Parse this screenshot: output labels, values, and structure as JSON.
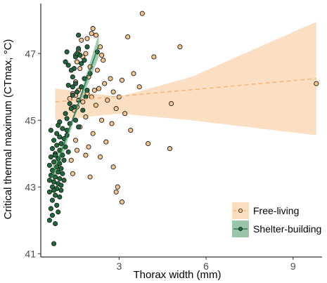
{
  "chart_data": {
    "type": "scatter",
    "xlabel": "Thorax width (mm)",
    "ylabel": "Critical thermal maximum (CTmax, °C)",
    "xlim": [
      0.3,
      10.0
    ],
    "ylim": [
      40.9,
      48.5
    ],
    "x_ticks": [
      3,
      6,
      9
    ],
    "y_ticks": [
      41,
      43,
      45,
      47
    ],
    "grid": false,
    "legend_position": "bottom-right",
    "series": [
      {
        "name": "Free-living",
        "color": "#f6c48e",
        "line_color": "#f7b57a",
        "band_color": "#fbd9b8",
        "line_style": "dashed",
        "fit": {
          "x": [
            0.8,
            9.8
          ],
          "y": [
            45.55,
            46.25
          ]
        },
        "band": {
          "x": [
            0.8,
            3.0,
            5.5,
            9.8
          ],
          "lower": [
            45.0,
            45.2,
            45.0,
            44.55
          ],
          "upper": [
            45.95,
            45.7,
            46.3,
            47.95
          ]
        },
        "points": [
          [
            3.8,
            48.2
          ],
          [
            2.1,
            47.75
          ],
          [
            2.05,
            47.6
          ],
          [
            2.2,
            47.55
          ],
          [
            1.9,
            47.45
          ],
          [
            3.3,
            47.5
          ],
          [
            1.7,
            47.4
          ],
          [
            2.35,
            47.2
          ],
          [
            5.1,
            47.2
          ],
          [
            1.6,
            47.1
          ],
          [
            1.85,
            47.0
          ],
          [
            2.4,
            46.95
          ],
          [
            1.5,
            46.95
          ],
          [
            1.75,
            46.9
          ],
          [
            4.2,
            46.9
          ],
          [
            2.45,
            46.8
          ],
          [
            1.8,
            46.8
          ],
          [
            1.55,
            46.75
          ],
          [
            2.0,
            46.6
          ],
          [
            1.65,
            46.55
          ],
          [
            2.25,
            46.5
          ],
          [
            3.5,
            46.4
          ],
          [
            1.95,
            46.3
          ],
          [
            2.7,
            46.25
          ],
          [
            3.1,
            46.2
          ],
          [
            1.5,
            46.15
          ],
          [
            2.5,
            46.1
          ],
          [
            1.7,
            46.0
          ],
          [
            3.7,
            46.0
          ],
          [
            2.3,
            45.95
          ],
          [
            1.6,
            45.9
          ],
          [
            2.15,
            45.9
          ],
          [
            2.8,
            45.85
          ],
          [
            1.4,
            45.8
          ],
          [
            1.9,
            45.8
          ],
          [
            3.0,
            45.7
          ],
          [
            2.05,
            45.7
          ],
          [
            1.3,
            45.65
          ],
          [
            2.6,
            45.6
          ],
          [
            1.75,
            45.55
          ],
          [
            4.8,
            45.5
          ],
          [
            2.2,
            45.45
          ],
          [
            1.55,
            45.4
          ],
          [
            2.9,
            45.35
          ],
          [
            1.45,
            45.3
          ],
          [
            3.2,
            45.2
          ],
          [
            1.85,
            45.1
          ],
          [
            2.4,
            45.0
          ],
          [
            2.75,
            44.9
          ],
          [
            1.65,
            44.8
          ],
          [
            3.4,
            44.7
          ],
          [
            2.1,
            44.6
          ],
          [
            1.5,
            44.4
          ],
          [
            2.55,
            44.35
          ],
          [
            4.0,
            44.3
          ],
          [
            1.95,
            44.2
          ],
          [
            4.75,
            44.15
          ],
          [
            1.55,
            44.1
          ],
          [
            2.35,
            43.9
          ],
          [
            1.85,
            43.95
          ],
          [
            2.8,
            43.6
          ],
          [
            1.4,
            43.4
          ],
          [
            2.0,
            43.3
          ],
          [
            2.95,
            43.0
          ],
          [
            2.9,
            42.85
          ],
          [
            3.1,
            42.55
          ],
          [
            9.8,
            46.1
          ],
          [
            1.35,
            43.8
          ],
          [
            1.5,
            45.75
          ]
        ]
      },
      {
        "name": "Shelter-building",
        "color": "#1f6a3c",
        "line_color": "#2e7d4f",
        "band_color": "#8fbf9f",
        "line_style": "solid",
        "fit": {
          "x": [
            0.7,
            2.3
          ],
          "y": [
            43.3,
            47.25
          ]
        },
        "band": {
          "x": [
            0.7,
            1.5,
            2.3
          ],
          "lower": [
            42.95,
            45.15,
            46.9
          ],
          "upper": [
            43.65,
            45.3,
            47.6
          ]
        },
        "points": [
          [
            1.6,
            47.55
          ],
          [
            1.9,
            47.2
          ],
          [
            1.6,
            47.15
          ],
          [
            1.2,
            47.05
          ],
          [
            2.25,
            47.05
          ],
          [
            1.65,
            46.95
          ],
          [
            1.5,
            46.9
          ],
          [
            1.8,
            46.8
          ],
          [
            1.15,
            46.75
          ],
          [
            1.25,
            46.65
          ],
          [
            1.45,
            46.55
          ],
          [
            1.35,
            46.5
          ],
          [
            2.0,
            46.4
          ],
          [
            1.4,
            46.3
          ],
          [
            1.8,
            46.25
          ],
          [
            1.5,
            46.1
          ],
          [
            1.25,
            46.05
          ],
          [
            1.7,
            46.0
          ],
          [
            1.9,
            45.9
          ],
          [
            1.55,
            45.85
          ],
          [
            1.4,
            45.75
          ],
          [
            1.85,
            45.7
          ],
          [
            1.6,
            45.6
          ],
          [
            1.3,
            45.5
          ],
          [
            1.45,
            45.4
          ],
          [
            1.75,
            45.3
          ],
          [
            1.15,
            45.2
          ],
          [
            1.2,
            45.05
          ],
          [
            1.5,
            45.0
          ],
          [
            0.95,
            44.95
          ],
          [
            1.3,
            44.9
          ],
          [
            1.6,
            44.8
          ],
          [
            1.05,
            44.75
          ],
          [
            0.85,
            44.6
          ],
          [
            1.2,
            44.55
          ],
          [
            0.95,
            44.5
          ],
          [
            1.1,
            44.45
          ],
          [
            0.75,
            44.4
          ],
          [
            1.0,
            44.3
          ],
          [
            0.85,
            44.25
          ],
          [
            1.15,
            44.2
          ],
          [
            0.7,
            44.15
          ],
          [
            0.95,
            44.1
          ],
          [
            1.25,
            44.05
          ],
          [
            0.8,
            44.0
          ],
          [
            1.05,
            43.95
          ],
          [
            0.65,
            43.9
          ],
          [
            0.9,
            43.85
          ],
          [
            1.1,
            43.8
          ],
          [
            0.75,
            43.75
          ],
          [
            0.95,
            43.7
          ],
          [
            0.6,
            43.65
          ],
          [
            0.85,
            43.6
          ],
          [
            1.0,
            43.55
          ],
          [
            0.7,
            43.5
          ],
          [
            0.9,
            43.45
          ],
          [
            1.05,
            43.4
          ],
          [
            0.65,
            43.35
          ],
          [
            0.8,
            43.3
          ],
          [
            0.95,
            43.25
          ],
          [
            0.6,
            43.2
          ],
          [
            0.75,
            43.15
          ],
          [
            0.9,
            43.1
          ],
          [
            1.0,
            43.05
          ],
          [
            0.7,
            43.0
          ],
          [
            0.85,
            42.95
          ],
          [
            0.6,
            42.85
          ],
          [
            0.8,
            42.75
          ],
          [
            0.95,
            42.7
          ],
          [
            0.7,
            42.6
          ],
          [
            0.85,
            42.45
          ],
          [
            0.65,
            42.35
          ],
          [
            0.9,
            42.25
          ],
          [
            0.7,
            42.15
          ],
          [
            0.6,
            42.0
          ],
          [
            0.8,
            41.9
          ],
          [
            0.75,
            41.3
          ],
          [
            1.0,
            42.9
          ],
          [
            1.1,
            43.2
          ],
          [
            1.2,
            44.7
          ],
          [
            1.35,
            45.35
          ],
          [
            0.9,
            44.85
          ],
          [
            0.8,
            43.95
          ],
          [
            1.4,
            46.0
          ],
          [
            1.7,
            46.7
          ],
          [
            1.55,
            47.0
          ],
          [
            0.65,
            44.7
          ],
          [
            0.75,
            42.9
          ]
        ]
      }
    ]
  }
}
